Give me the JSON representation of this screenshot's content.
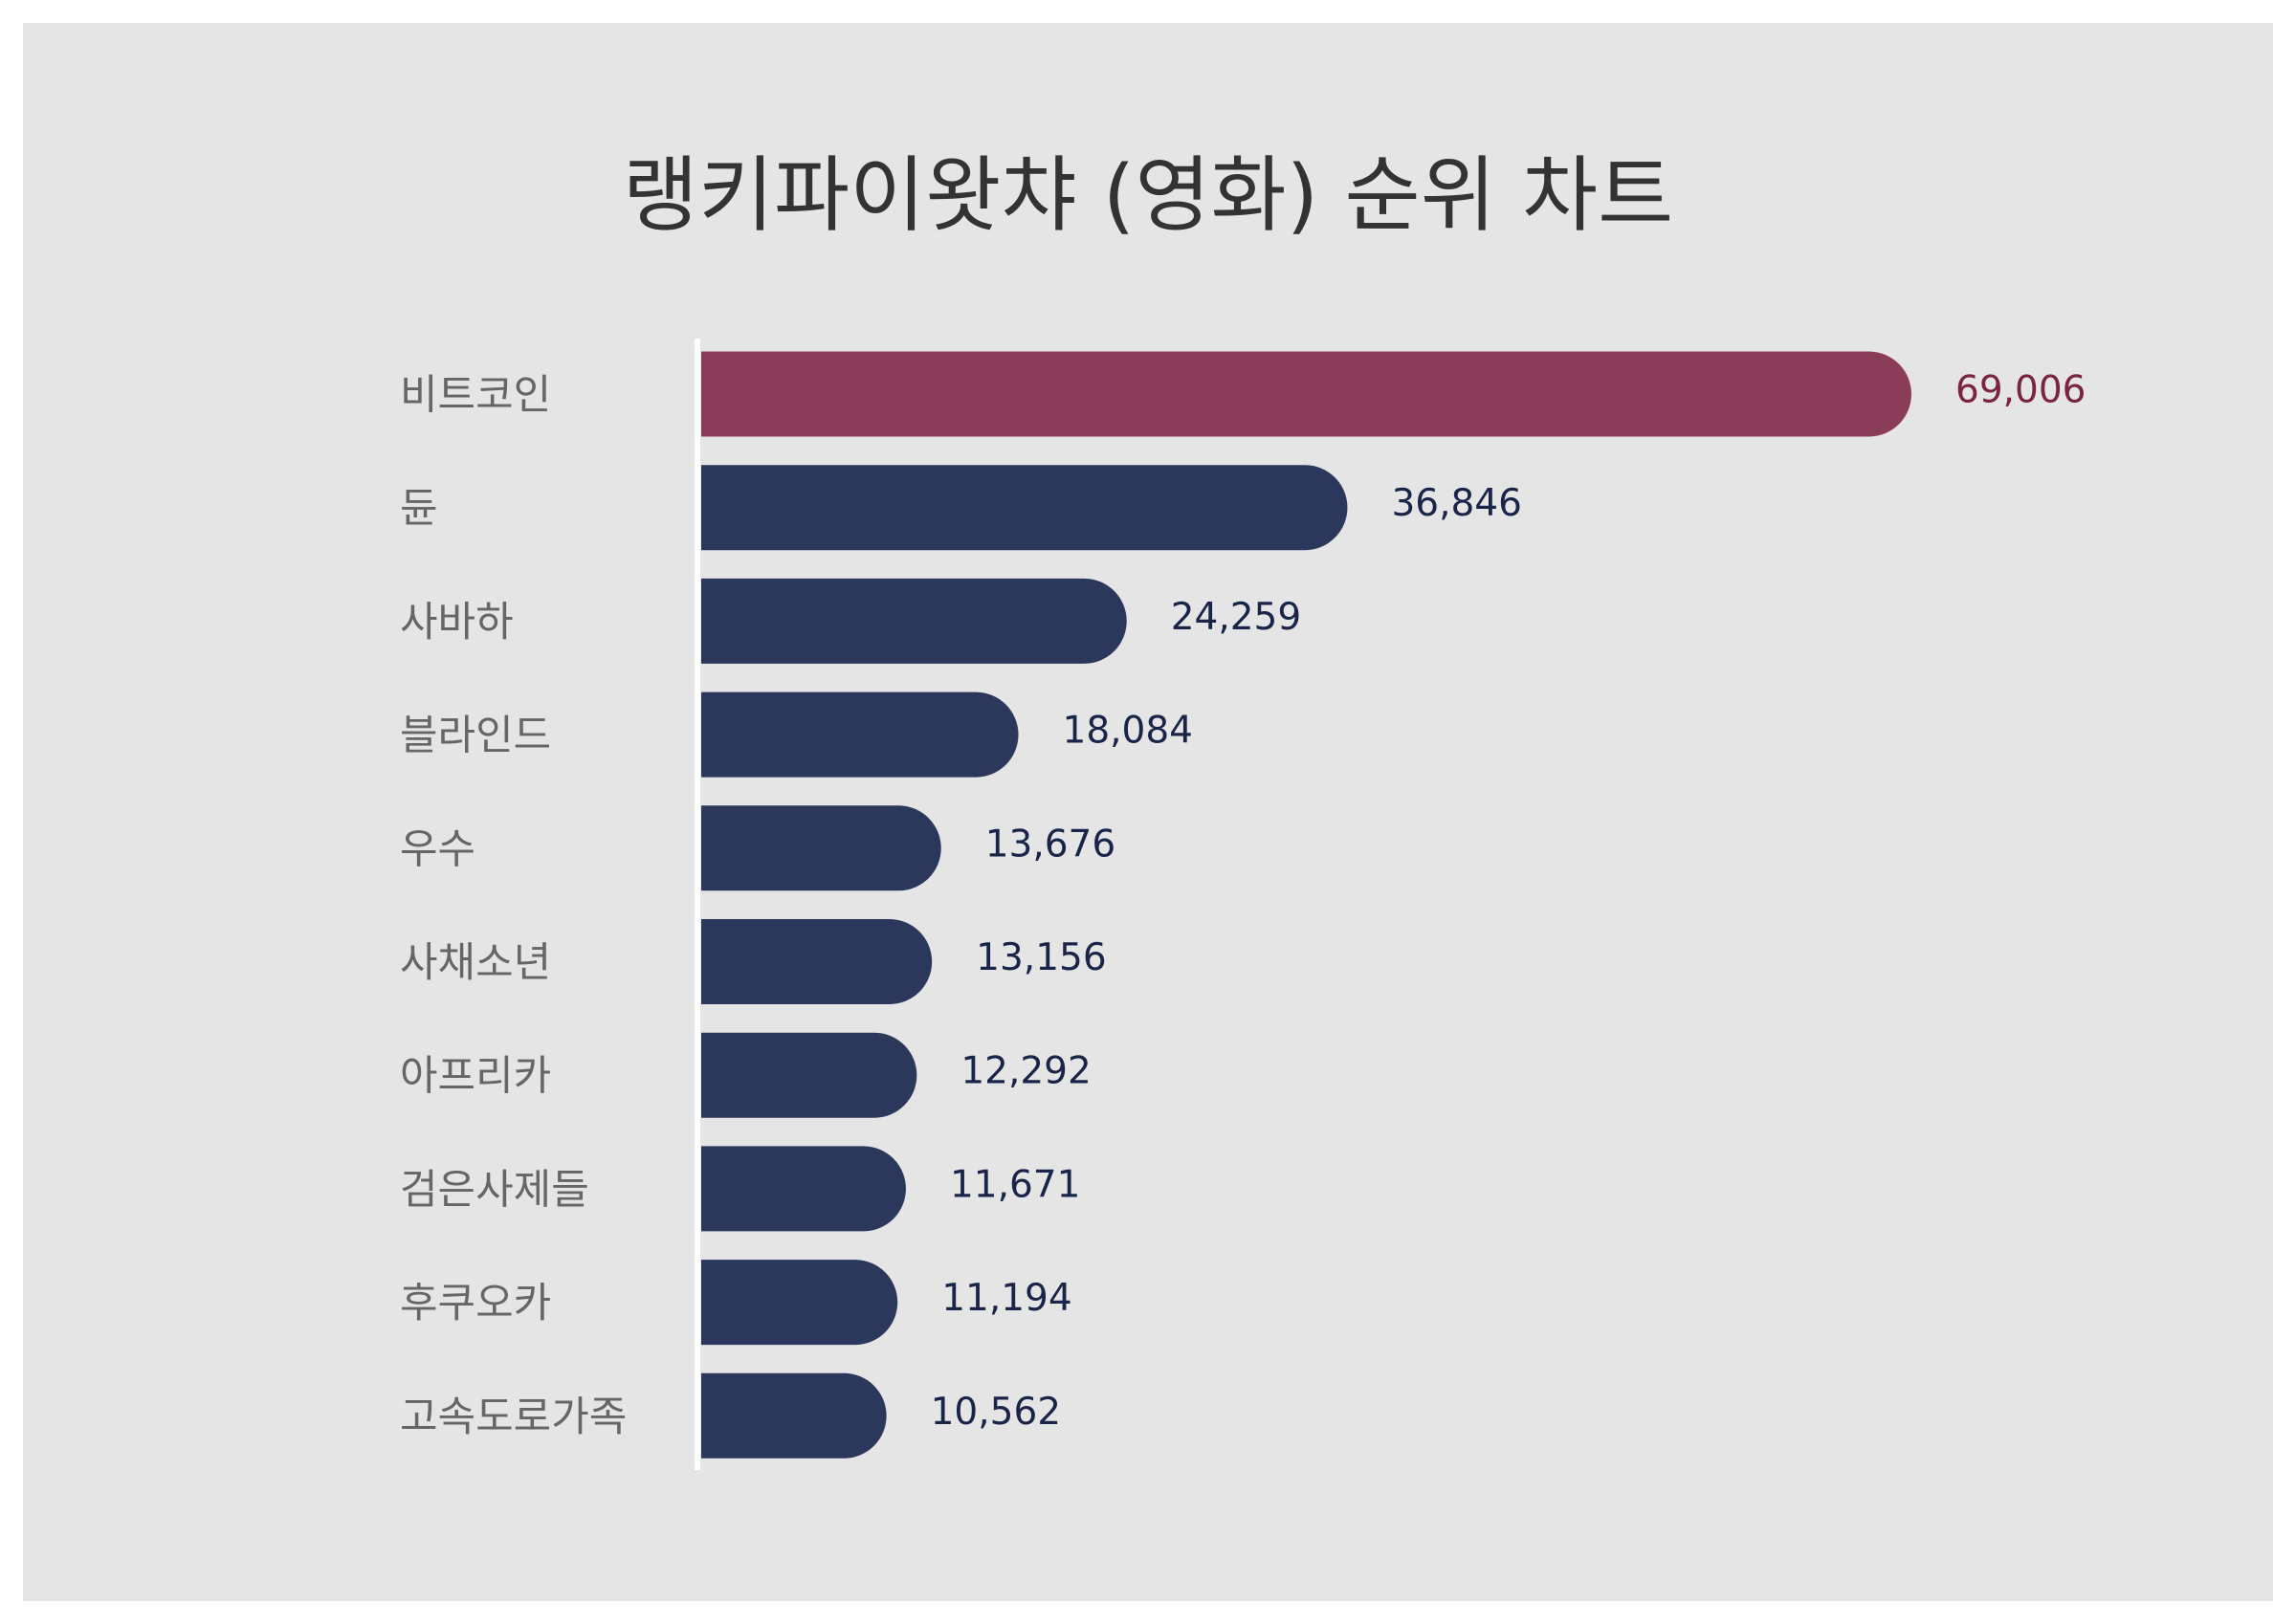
{
  "chart_data": {
    "type": "bar",
    "orientation": "horizontal",
    "title": "랭키파이왓챠 (영화) 순위 차트",
    "categories": [
      "비트코인",
      "듄",
      "사바하",
      "블라인드",
      "우수",
      "사채소년",
      "아프리카",
      "검은사제들",
      "후쿠오카",
      "고속도로가족"
    ],
    "values": [
      69006,
      36846,
      24259,
      18084,
      13676,
      13156,
      12292,
      11671,
      11194,
      10562
    ],
    "value_labels": [
      "69,006",
      "36,846",
      "24,259",
      "18,084",
      "13,676",
      "13,156",
      "12,292",
      "11,671",
      "11,194",
      "10,562"
    ],
    "colors": [
      "#8b3c59",
      "#2c375c",
      "#2c375c",
      "#2c375c",
      "#2c375c",
      "#2c375c",
      "#2c375c",
      "#2c375c",
      "#2c375c",
      "#2c375c"
    ]
  }
}
